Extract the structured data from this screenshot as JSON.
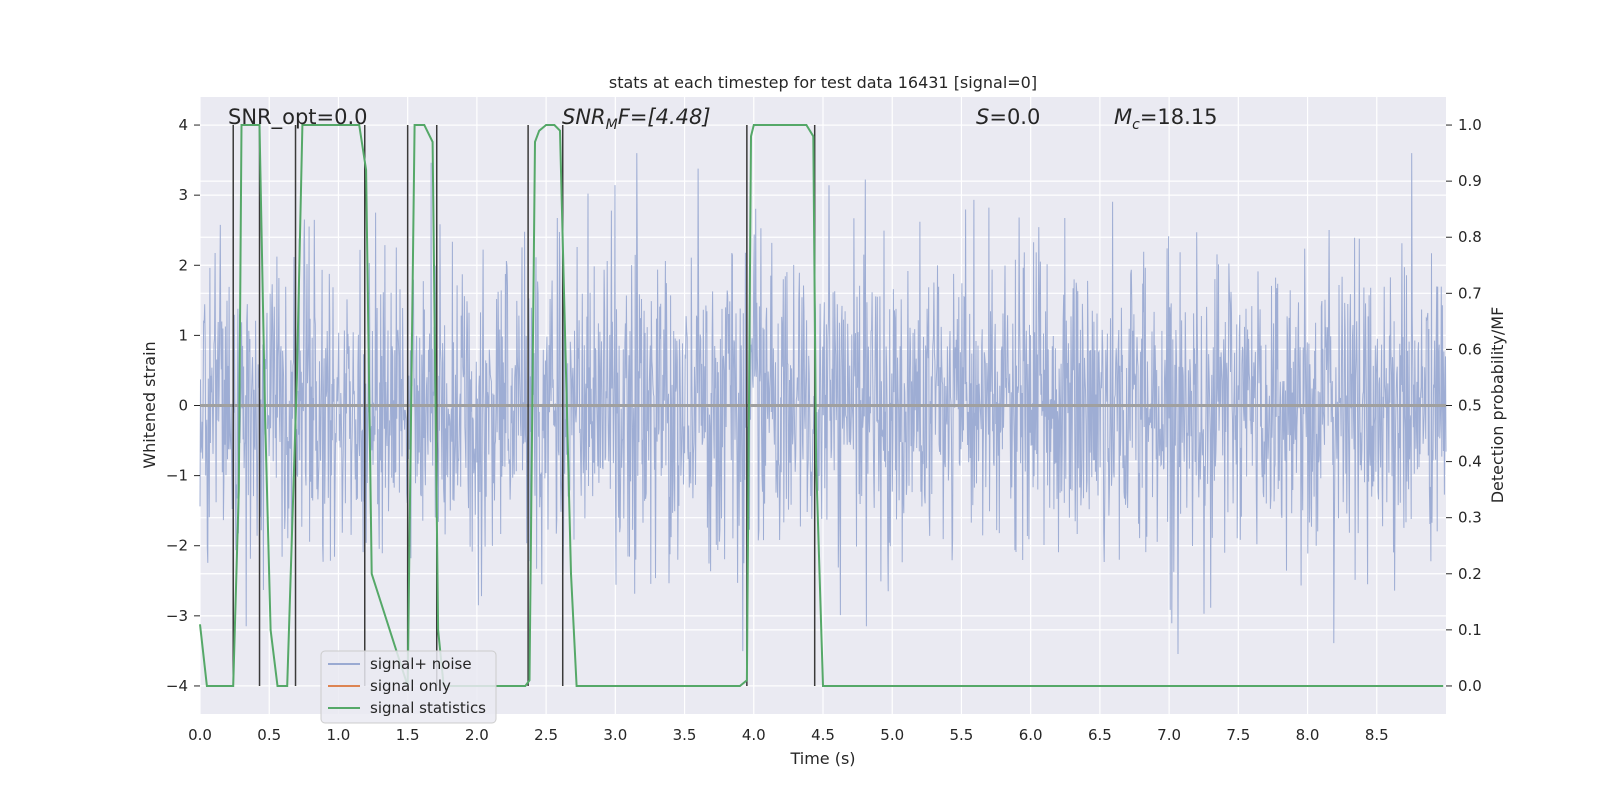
{
  "chart_data": {
    "type": "line",
    "title": "stats at each timestep for test data 16431 [signal=0]",
    "xlabel": "Time (s)",
    "ylabel": "Whitened strain",
    "ylabel_right": "Detection probability/MF",
    "xlim": [
      0,
      9.0
    ],
    "ylim": [
      -4.4,
      4.4
    ],
    "ylim_right": [
      -0.05,
      1.05
    ],
    "x_ticks": [
      "0.0",
      "0.5",
      "1.0",
      "1.5",
      "2.0",
      "2.5",
      "3.0",
      "3.5",
      "4.0",
      "4.5",
      "5.0",
      "5.5",
      "6.0",
      "6.5",
      "7.0",
      "7.5",
      "8.0",
      "8.5"
    ],
    "y_ticks": [
      "4",
      "3",
      "2",
      "1",
      "0",
      "−1",
      "−2",
      "−3",
      "−4"
    ],
    "y_ticks_right": [
      "1.0",
      "0.9",
      "0.8",
      "0.7",
      "0.6",
      "0.5",
      "0.4",
      "0.3",
      "0.2",
      "0.1",
      "0.0"
    ],
    "grid": true,
    "legend_position": "lower-left",
    "annotations": {
      "snr_opt": "SNR_opt=0.0",
      "snr_mf_var": "SNR",
      "snr_mf_sub": "M",
      "snr_mf_rest": "F=[4.48]",
      "s_var": "S",
      "s_rest": "=0.0",
      "mc_var": "M",
      "mc_sub": "c",
      "mc_rest": "=18.15"
    },
    "series": [
      {
        "name": "signal+ noise",
        "color": "#9aaad2",
        "noise_band_sigma": 1.0,
        "noise_peak_max": 3.6,
        "noise_peak_min": -3.8
      },
      {
        "name": "signal only",
        "color": "#dd8452",
        "values": [
          0,
          0
        ]
      },
      {
        "name": "signal statistics",
        "color": "#55a868",
        "axis": "right",
        "x": [
          0.0,
          0.05,
          0.18,
          0.24,
          0.28,
          0.3,
          0.34,
          0.4,
          0.43,
          0.47,
          0.51,
          0.56,
          0.63,
          0.7,
          0.74,
          0.77,
          0.8,
          1.15,
          1.2,
          1.24,
          1.5,
          1.55,
          1.62,
          1.68,
          1.72,
          1.76,
          1.8,
          2.35,
          2.38,
          2.42,
          2.45,
          2.5,
          2.56,
          2.6,
          2.68,
          2.72,
          2.76,
          2.9,
          3.9,
          3.95,
          3.98,
          4.0,
          4.2,
          4.38,
          4.43,
          4.45,
          4.5,
          4.55,
          4.8,
          5.0,
          8.98
        ],
        "values": [
          0.11,
          0.0,
          0.0,
          0.0,
          0.35,
          1.0,
          1.0,
          1.0,
          1.0,
          0.48,
          0.1,
          0.0,
          0.0,
          0.55,
          1.0,
          1.0,
          1.0,
          1.0,
          0.92,
          0.2,
          0.0,
          1.0,
          1.0,
          0.97,
          0.1,
          0.0,
          0.0,
          0.0,
          0.01,
          0.97,
          0.99,
          1.0,
          1.0,
          0.99,
          0.2,
          0.0,
          0.0,
          0.0,
          0.0,
          0.01,
          0.98,
          1.0,
          1.0,
          1.0,
          0.98,
          0.4,
          0.0,
          0.0,
          0.0,
          0.0,
          0.0
        ]
      }
    ],
    "vlines": [
      0.24,
      0.43,
      0.69,
      1.19,
      1.5,
      1.71,
      2.37,
      2.62,
      3.95,
      4.44
    ],
    "vline_color": "#3a3a3a"
  }
}
